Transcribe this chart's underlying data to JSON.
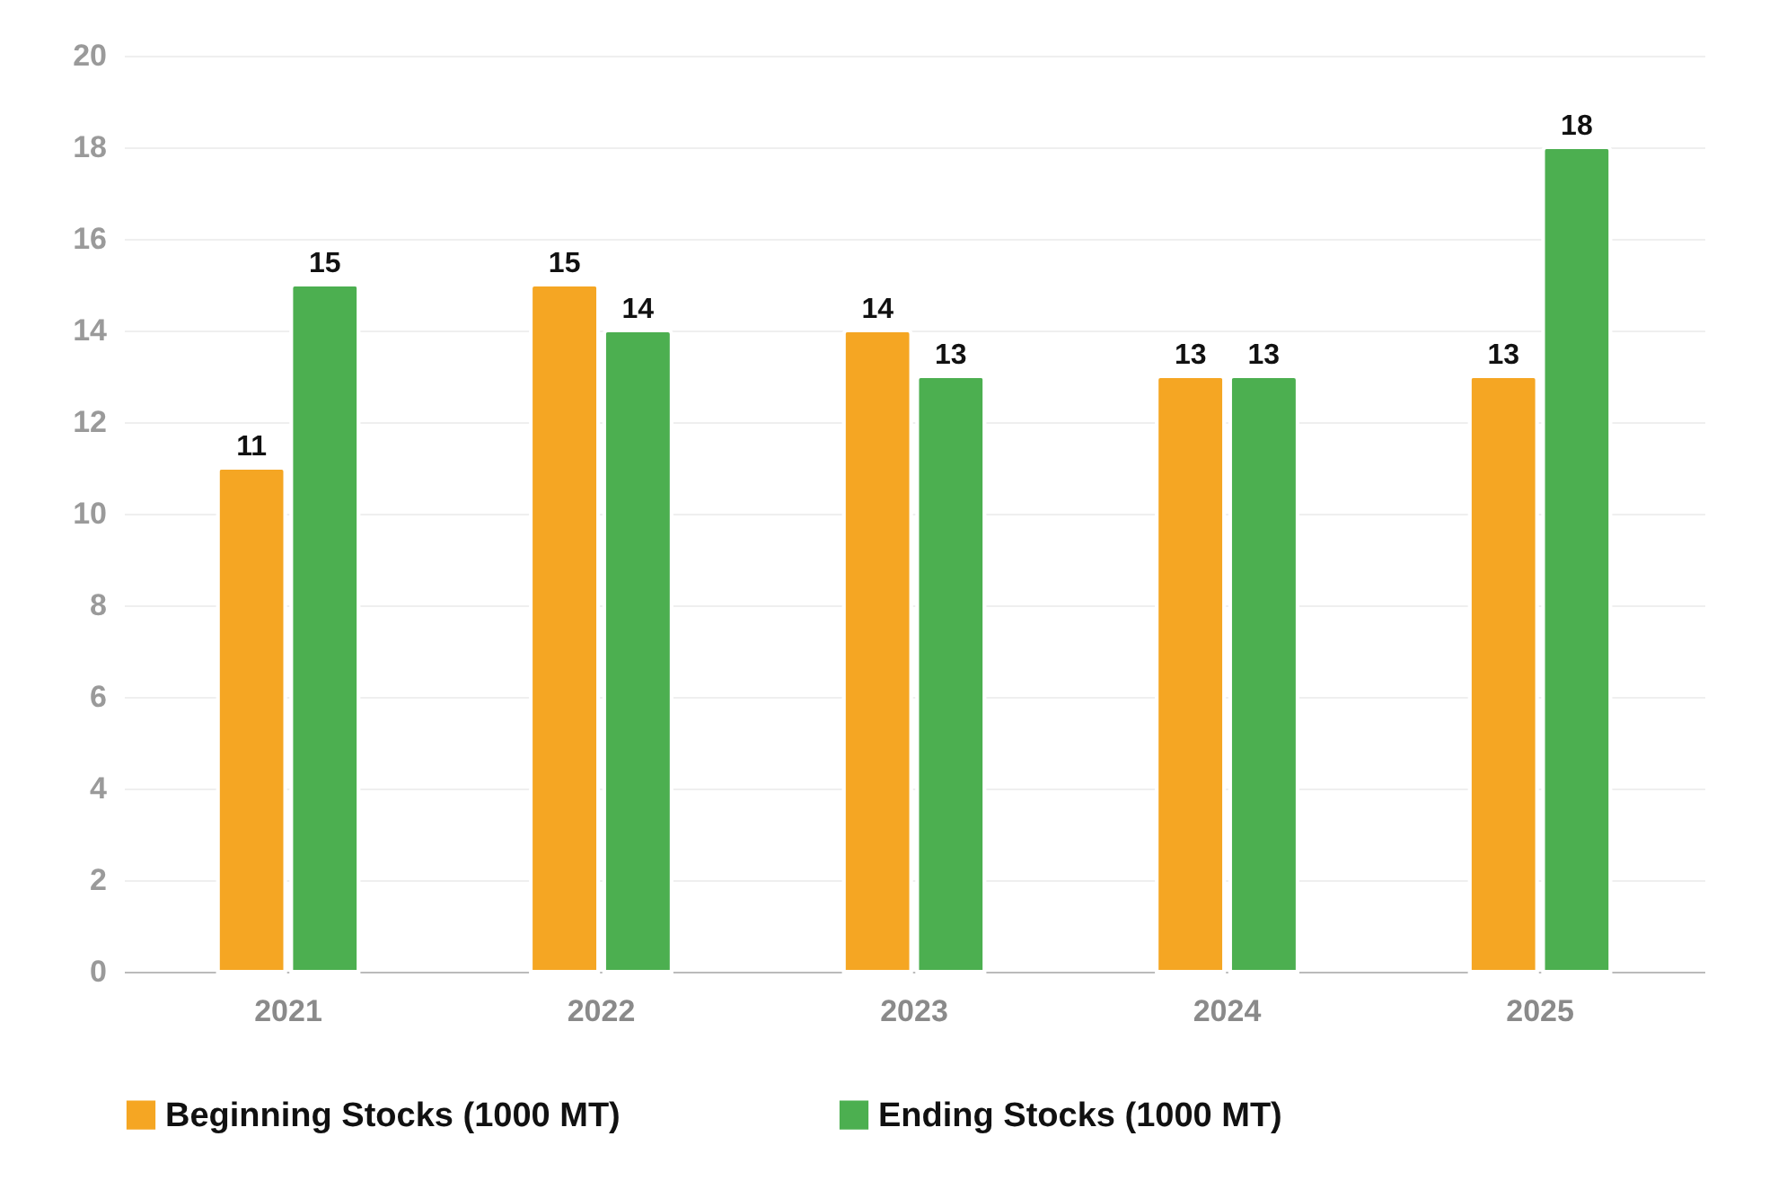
{
  "chart_data": {
    "type": "bar",
    "categories": [
      "2021",
      "2022",
      "2023",
      "2024",
      "2025"
    ],
    "series": [
      {
        "name": "Beginning Stocks (1000 MT)",
        "color": "#f5a623",
        "values": [
          11,
          15,
          14,
          13,
          13
        ]
      },
      {
        "name": "Ending Stocks (1000 MT)",
        "color": "#4caf50",
        "values": [
          15,
          14,
          13,
          13,
          18
        ]
      }
    ],
    "ylim": [
      0,
      20
    ],
    "yticks": [
      0,
      2,
      4,
      6,
      8,
      10,
      12,
      14,
      16,
      18,
      20
    ],
    "grid": "y",
    "legend": "bottom",
    "data_labels": true
  }
}
